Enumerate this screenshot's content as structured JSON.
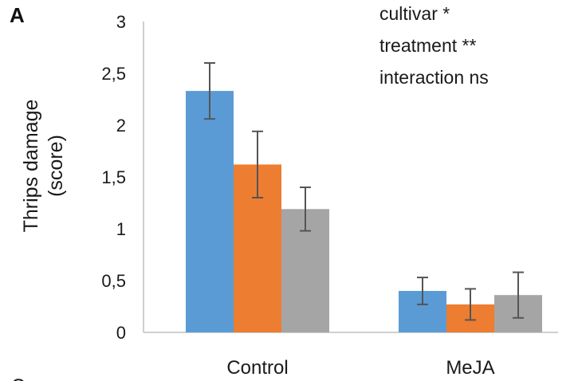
{
  "panel_label": "A",
  "cut_off_label": "C",
  "chart_data": {
    "type": "bar",
    "categories": [
      "Control",
      "MeJA"
    ],
    "series": [
      {
        "color": "#5B9BD5",
        "values": [
          2.33,
          0.4
        ],
        "errors": [
          0.27,
          0.13
        ]
      },
      {
        "color": "#ED7D31",
        "values": [
          1.62,
          0.27
        ],
        "errors": [
          0.32,
          0.15
        ]
      },
      {
        "color": "#A5A5A5",
        "values": [
          1.19,
          0.36
        ],
        "errors": [
          0.21,
          0.22
        ]
      }
    ],
    "ylabel_lines": [
      "Thrips damage",
      "(score)"
    ],
    "ylim": [
      0,
      3
    ],
    "yticks": [
      "0",
      "0,5",
      "1",
      "1,5",
      "2",
      "2,5",
      "3"
    ],
    "annotations": [
      "cultivar *",
      "treatment **",
      "interaction ns"
    ],
    "grid": false,
    "legend": "none"
  }
}
